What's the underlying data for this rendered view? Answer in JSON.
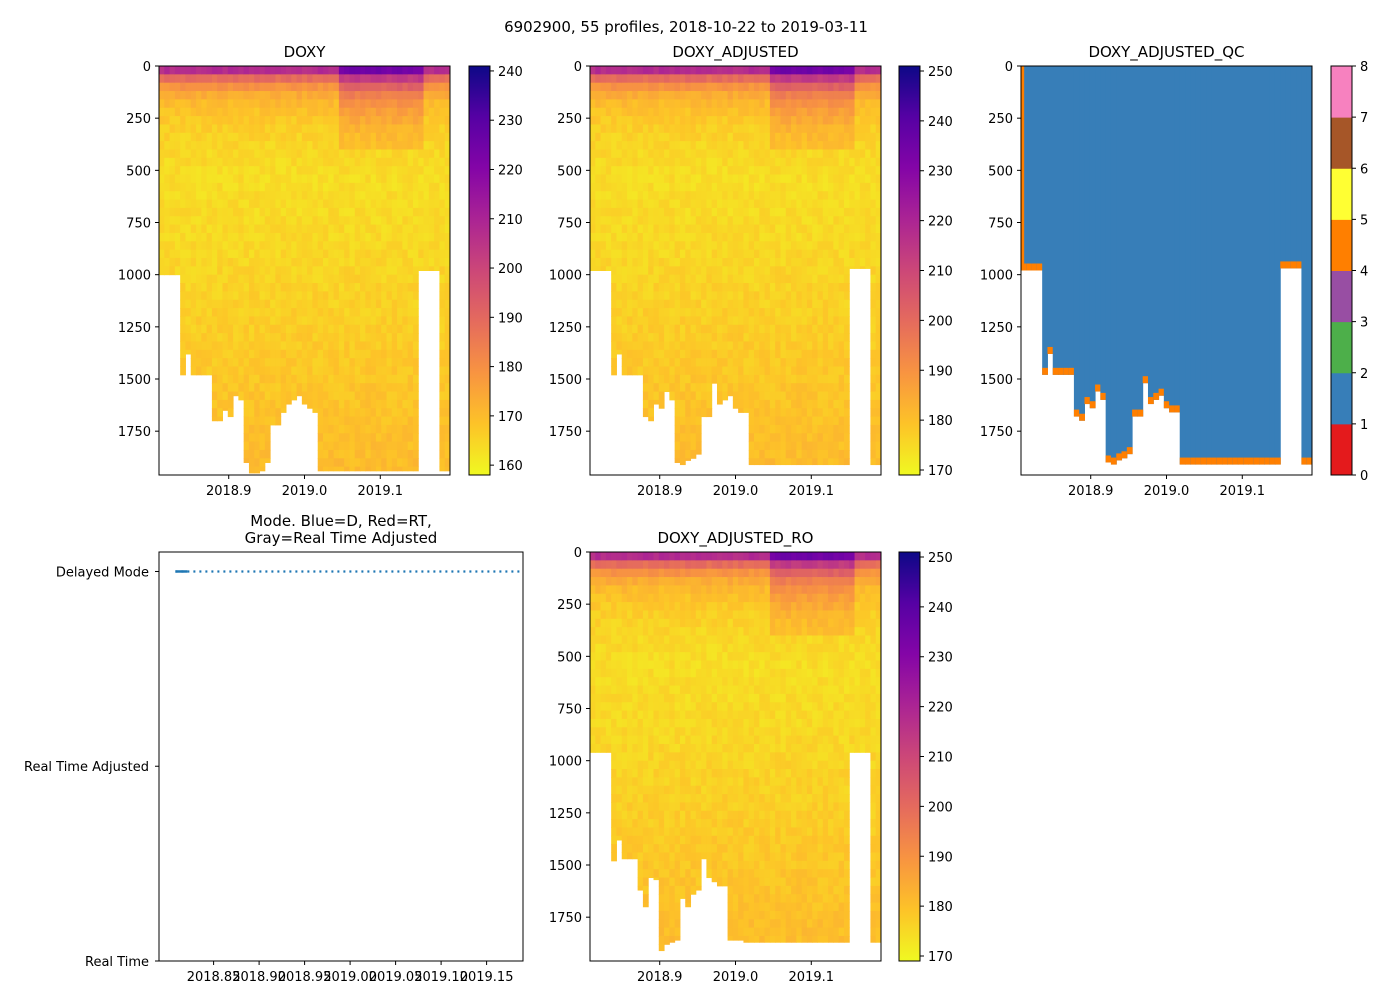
{
  "figure": {
    "suptitle": "6902900, 55 profiles, 2018-10-22 to 2019-03-11"
  },
  "chart_data": [
    {
      "id": "doxy",
      "type": "heatmap",
      "title": "DOXY",
      "x_ticks": [
        "2018.9",
        "2019.0",
        "2019.1"
      ],
      "x_tick_values": [
        2018.9,
        2019.0,
        2019.1
      ],
      "x_range": [
        2018.808,
        2019.192
      ],
      "y_ticks": [
        "0",
        "250",
        "500",
        "750",
        "1000",
        "1250",
        "1500",
        "1750"
      ],
      "y_tick_values": [
        0,
        250,
        500,
        750,
        1000,
        1250,
        1500,
        1750
      ],
      "y_range": [
        0,
        1960
      ],
      "y_inverted": true,
      "colormap": "plasma_r",
      "clim": [
        158,
        241
      ],
      "colorbar_ticks": [
        "160",
        "170",
        "180",
        "190",
        "200",
        "210",
        "220",
        "230",
        "240"
      ],
      "colorbar_tick_values": [
        160,
        170,
        180,
        190,
        200,
        210,
        220,
        230,
        240
      ],
      "profile_count": 55,
      "profile_max_depth": [
        1000,
        1000,
        1000,
        1000,
        1480,
        1380,
        1480,
        1480,
        1480,
        1480,
        1700,
        1700,
        1650,
        1680,
        1580,
        1600,
        1900,
        1950,
        1950,
        1940,
        1900,
        1720,
        1720,
        1660,
        1620,
        1600,
        1580,
        1620,
        1640,
        1660,
        1940,
        1940,
        1940,
        1940,
        1940,
        1940,
        1940,
        1940,
        1940,
        1940,
        1940,
        1940,
        1940,
        1940,
        1940,
        1940,
        1940,
        1940,
        1940,
        980,
        980,
        980,
        980,
        1940,
        1940
      ]
    },
    {
      "id": "doxy_adjusted",
      "type": "heatmap",
      "title": "DOXY_ADJUSTED",
      "x_ticks": [
        "2018.9",
        "2019.0",
        "2019.1"
      ],
      "x_tick_values": [
        2018.9,
        2019.0,
        2019.1
      ],
      "x_range": [
        2018.808,
        2019.192
      ],
      "y_ticks": [
        "0",
        "250",
        "500",
        "750",
        "1000",
        "1250",
        "1500",
        "1750"
      ],
      "y_tick_values": [
        0,
        250,
        500,
        750,
        1000,
        1250,
        1500,
        1750
      ],
      "y_range": [
        0,
        1960
      ],
      "y_inverted": true,
      "colormap": "plasma_r",
      "clim": [
        169,
        251
      ],
      "colorbar_ticks": [
        "170",
        "180",
        "190",
        "200",
        "210",
        "220",
        "230",
        "240",
        "250"
      ],
      "colorbar_tick_values": [
        170,
        180,
        190,
        200,
        210,
        220,
        230,
        240,
        250
      ],
      "profile_count": 55,
      "profile_max_depth": [
        980,
        980,
        980,
        980,
        1480,
        1380,
        1480,
        1480,
        1480,
        1480,
        1680,
        1700,
        1620,
        1640,
        1560,
        1600,
        1900,
        1910,
        1890,
        1880,
        1860,
        1680,
        1680,
        1520,
        1620,
        1600,
        1580,
        1640,
        1660,
        1660,
        1910,
        1910,
        1910,
        1910,
        1910,
        1910,
        1910,
        1910,
        1910,
        1910,
        1910,
        1910,
        1910,
        1910,
        1910,
        1910,
        1910,
        1910,
        1910,
        970,
        970,
        970,
        970,
        1910,
        1910
      ]
    },
    {
      "id": "doxy_adjusted_qc",
      "type": "heatmap",
      "title": "DOXY_ADJUSTED_QC",
      "x_ticks": [
        "2018.9",
        "2019.0",
        "2019.1"
      ],
      "x_tick_values": [
        2018.9,
        2019.0,
        2019.1
      ],
      "x_range": [
        2018.808,
        2019.192
      ],
      "y_ticks": [
        "0",
        "250",
        "500",
        "750",
        "1000",
        "1250",
        "1500",
        "1750"
      ],
      "y_tick_values": [
        0,
        250,
        500,
        750,
        1000,
        1250,
        1500,
        1750
      ],
      "y_range": [
        0,
        1960
      ],
      "y_inverted": true,
      "colormap": "qc_categorical",
      "qc_colors": [
        "#e41a1c",
        "#377eb8",
        "#4daf4a",
        "#984ea3",
        "#ff7f00",
        "#ffff33",
        "#a65628",
        "#f781bf",
        "#999999"
      ],
      "colorbar_ticks": [
        "0",
        "1",
        "2",
        "3",
        "4",
        "5",
        "6",
        "7",
        "8"
      ],
      "colorbar_tick_values": [
        0,
        1,
        2,
        3,
        4,
        5,
        6,
        7,
        8
      ],
      "dominant_flag": 1,
      "bottom_flag": 4,
      "profile_count": 55,
      "profile_max_depth": [
        980,
        980,
        980,
        980,
        1480,
        1380,
        1480,
        1480,
        1480,
        1480,
        1680,
        1700,
        1620,
        1640,
        1560,
        1600,
        1900,
        1910,
        1890,
        1880,
        1860,
        1680,
        1680,
        1520,
        1620,
        1600,
        1580,
        1640,
        1660,
        1660,
        1910,
        1910,
        1910,
        1910,
        1910,
        1910,
        1910,
        1910,
        1910,
        1910,
        1910,
        1910,
        1910,
        1910,
        1910,
        1910,
        1910,
        1910,
        1910,
        970,
        970,
        970,
        970,
        1910,
        1910
      ]
    },
    {
      "id": "mode",
      "type": "line",
      "title": "Mode. Blue=D, Red=RT,\nGray=Real Time Adjusted",
      "title_lines": [
        "Mode. Blue=D, Red=RT,",
        "Gray=Real Time Adjusted"
      ],
      "x_ticks": [
        "2018.85",
        "2018.90",
        "2018.95",
        "2019.00",
        "2019.05",
        "2019.10",
        "2019.15"
      ],
      "x_tick_values": [
        2018.85,
        2018.9,
        2018.95,
        2019.0,
        2019.05,
        2019.1,
        2019.15
      ],
      "x_range": [
        2018.79,
        2019.19
      ],
      "y_ticks": [
        "Real Time",
        "Real Time Adjusted",
        "Delayed Mode"
      ],
      "y_tick_values": [
        0,
        1,
        2
      ],
      "y_range": [
        0,
        2.1
      ],
      "series": [
        {
          "name": "Delayed Mode",
          "color": "#1f77b4",
          "style": "dotted",
          "x": [
            2018.808,
            2019.19
          ],
          "y": [
            2,
            2
          ]
        }
      ]
    },
    {
      "id": "doxy_adjusted_ro",
      "type": "heatmap",
      "title": "DOXY_ADJUSTED_RO",
      "x_ticks": [
        "2018.9",
        "2019.0",
        "2019.1"
      ],
      "x_tick_values": [
        2018.9,
        2019.0,
        2019.1
      ],
      "x_range": [
        2018.808,
        2019.192
      ],
      "y_ticks": [
        "0",
        "250",
        "500",
        "750",
        "1000",
        "1250",
        "1500",
        "1750"
      ],
      "y_tick_values": [
        0,
        250,
        500,
        750,
        1000,
        1250,
        1500,
        1750
      ],
      "y_range": [
        0,
        1960
      ],
      "y_inverted": true,
      "colormap": "plasma_r",
      "clim": [
        169,
        251
      ],
      "colorbar_ticks": [
        "170",
        "180",
        "190",
        "200",
        "210",
        "220",
        "230",
        "240",
        "250"
      ],
      "colorbar_tick_values": [
        170,
        180,
        190,
        200,
        210,
        220,
        230,
        240,
        250
      ],
      "profile_count": 55,
      "profile_max_depth": [
        960,
        960,
        960,
        960,
        1480,
        1380,
        1470,
        1470,
        1470,
        1620,
        1700,
        1560,
        1570,
        1910,
        1880,
        1870,
        1860,
        1660,
        1700,
        1640,
        1620,
        1470,
        1560,
        1580,
        1600,
        1600,
        1860,
        1860,
        1860,
        1870,
        1870,
        1870,
        1870,
        1870,
        1870,
        1870,
        1870,
        1870,
        1870,
        1870,
        1870,
        1870,
        1870,
        1870,
        1870,
        1870,
        1870,
        1870,
        1870,
        960,
        960,
        960,
        960,
        1870,
        1870
      ]
    }
  ]
}
